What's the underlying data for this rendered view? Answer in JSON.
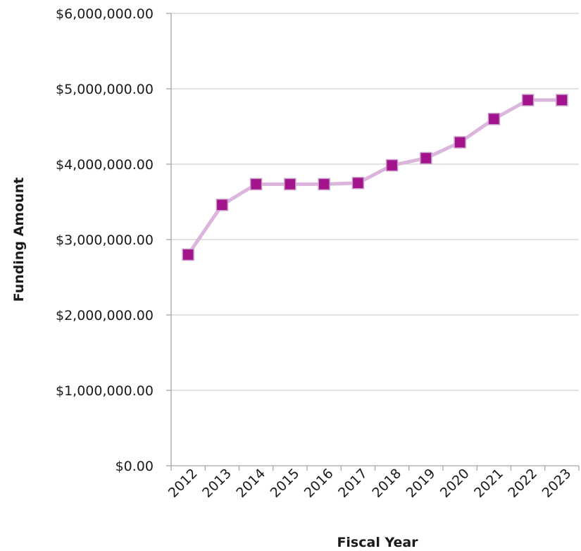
{
  "chart_data": {
    "type": "line",
    "title": "",
    "xlabel": "Fiscal Year",
    "ylabel": "Funding Amount",
    "categories": [
      "2012",
      "2013",
      "2014",
      "2015",
      "2016",
      "2017",
      "2018",
      "2019",
      "2020",
      "2021",
      "2022",
      "2023"
    ],
    "series": [
      {
        "values": [
          2800000,
          3460000,
          3735000,
          3735000,
          3735000,
          3750000,
          3985000,
          4080000,
          4290000,
          4600000,
          4850000,
          4850000
        ]
      }
    ],
    "ylim": [
      0,
      6000000
    ],
    "yticks": [
      0,
      1000000,
      2000000,
      3000000,
      4000000,
      5000000,
      6000000
    ],
    "ytick_labels": [
      "$0.00",
      "$1,000,000.00",
      "$2,000,000.00",
      "$3,000,000.00",
      "$4,000,000.00",
      "$5,000,000.00",
      "$6,000,000.00"
    ],
    "grid": true,
    "legend": "none",
    "line_color": "#dbb5db",
    "marker_color": "#a3138c",
    "marker_edge_color": "#c9a0c9",
    "marker_shape": "square"
  }
}
